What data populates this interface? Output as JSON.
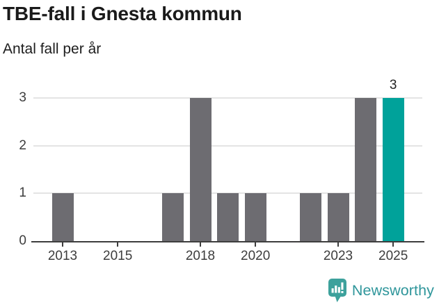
{
  "header": {
    "title": "TBE-fall i Gnesta kommun",
    "subtitle": "Antal fall per år"
  },
  "chart_data": {
    "type": "bar",
    "title": "TBE-fall i Gnesta kommun",
    "subtitle": "Antal fall per år",
    "categories": [
      2012,
      2013,
      2014,
      2015,
      2016,
      2017,
      2018,
      2019,
      2020,
      2021,
      2022,
      2023,
      2024,
      2025
    ],
    "values": [
      0,
      1,
      0,
      0,
      0,
      1,
      3,
      1,
      1,
      0,
      1,
      1,
      3,
      3
    ],
    "highlight_category": 2025,
    "data_labels": [
      {
        "category": 2025,
        "label": "3"
      }
    ],
    "xticks": [
      2013,
      2015,
      2018,
      2020,
      2023,
      2025
    ],
    "yticks": [
      0,
      1,
      2,
      3
    ],
    "ylim": [
      0,
      3
    ],
    "grid": "horizontal",
    "legend": "none",
    "xlabel": "",
    "ylabel": "",
    "colors": {
      "bar": "#6d6c71",
      "highlight": "#00a29a",
      "gridline": "#e4e4e4",
      "axis": "#3d3d3d",
      "tick_label": "#3d3d3d"
    }
  },
  "footer": {
    "brand": "Newsworthy",
    "logo_icon": "newsworthy-speech-bubble-bar-chart-icon",
    "brand_color": "#2f969b",
    "icon_color": "#3da19c"
  }
}
